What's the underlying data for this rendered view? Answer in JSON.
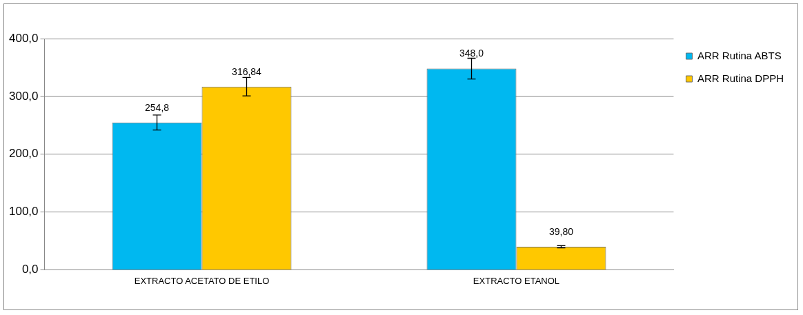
{
  "chart_data": {
    "type": "bar",
    "categories": [
      "EXTRACTO ACETATO DE ETILO",
      "EXTRACTO ETANOL"
    ],
    "series": [
      {
        "name": "ARR Rutina ABTS",
        "color": "#00b8f0",
        "values": [
          254.8,
          348.0
        ],
        "errors": [
          13,
          18
        ],
        "value_labels": [
          "254,8",
          "348,0"
        ]
      },
      {
        "name": "ARR Rutina DPPH",
        "color": "#ffc800",
        "values": [
          316.84,
          39.8
        ],
        "errors": [
          16,
          2
        ],
        "value_labels": [
          "316,84",
          "39,80"
        ]
      }
    ],
    "ylim": [
      0,
      400
    ],
    "yticks": [
      {
        "value": 0,
        "label": "0,0"
      },
      {
        "value": 100,
        "label": "100,0"
      },
      {
        "value": 200,
        "label": "200,0"
      },
      {
        "value": 300,
        "label": "300,0"
      },
      {
        "value": 400,
        "label": "400,0"
      }
    ],
    "grid": "y",
    "legend": "top right"
  }
}
